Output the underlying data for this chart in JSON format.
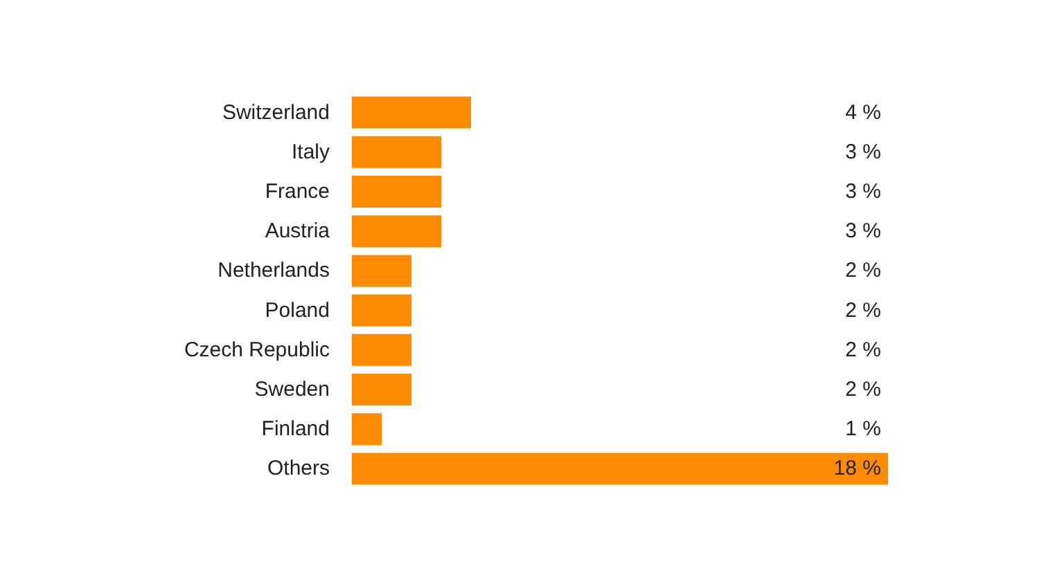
{
  "chart_data": {
    "type": "bar",
    "orientation": "horizontal",
    "categories": [
      "Switzerland",
      "Italy",
      "France",
      "Austria",
      "Netherlands",
      "Poland",
      "Czech Republic",
      "Sweden",
      "Finland",
      "Others"
    ],
    "values": [
      4,
      3,
      3,
      3,
      2,
      2,
      2,
      2,
      1,
      18
    ],
    "value_labels": [
      "4 %",
      "3 %",
      "3 %",
      "3 %",
      "2 %",
      "2 %",
      "2 %",
      "2 %",
      "1 %",
      "18 %"
    ],
    "color": "#ff8c00"
  }
}
